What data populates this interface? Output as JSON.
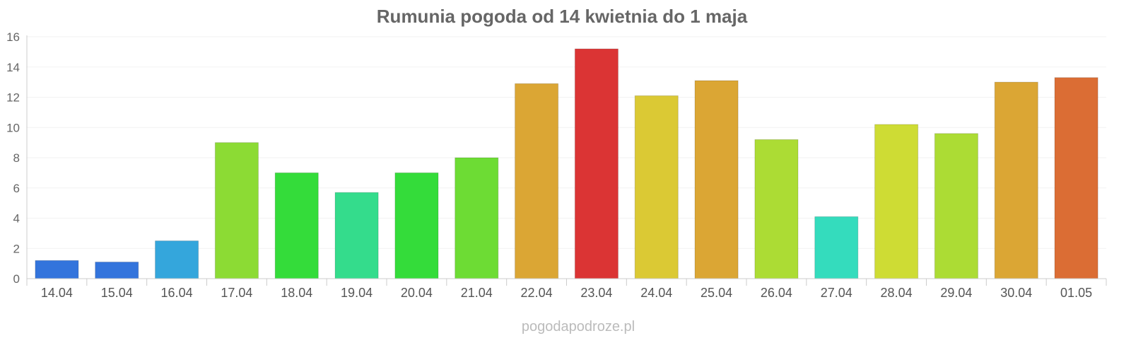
{
  "chart_data": {
    "type": "bar",
    "title": "Rumunia pogoda od 14 kwietnia do 1 maja",
    "xlabel": "",
    "ylabel": "",
    "categories": [
      "14.04",
      "15.04",
      "16.04",
      "17.04",
      "18.04",
      "19.04",
      "20.04",
      "21.04",
      "22.04",
      "23.04",
      "24.04",
      "25.04",
      "26.04",
      "27.04",
      "28.04",
      "29.04",
      "30.04",
      "01.05"
    ],
    "values": [
      1.2,
      1.1,
      2.5,
      9.0,
      7.0,
      5.7,
      7.0,
      8.0,
      12.9,
      15.2,
      12.1,
      13.1,
      9.2,
      4.1,
      10.2,
      9.6,
      13.0,
      13.3
    ],
    "colors": [
      "#3374dc",
      "#3374dc",
      "#34a6dc",
      "#8cdb34",
      "#34dc3a",
      "#34dc8c",
      "#34dc3a",
      "#6ddc34",
      "#dba634",
      "#db3434",
      "#dbc934",
      "#dba634",
      "#acdc34",
      "#34dcbd",
      "#cedc34",
      "#acdc34",
      "#dba634",
      "#db6d34"
    ],
    "ylim": [
      0,
      16
    ],
    "yticks": [
      0,
      2,
      4,
      6,
      8,
      10,
      12,
      14,
      16
    ],
    "grid": true,
    "legend": "none"
  },
  "watermark": "pogodapodroze.pl"
}
